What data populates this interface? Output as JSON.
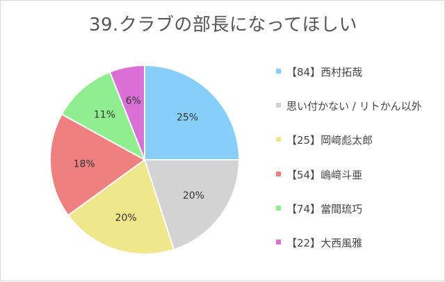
{
  "chart_data": {
    "type": "pie",
    "title": "39.クラブの部長になってほしい",
    "slices": [
      {
        "label": "【84】西村拓哉",
        "value": 25,
        "display": "25%",
        "color": "#87cefa"
      },
      {
        "label": "思い付かない / リトかん以外",
        "value": 20,
        "display": "20%",
        "color": "#d3d3d3"
      },
      {
        "label": "【25】岡﨑彪太郎",
        "value": 20,
        "display": "20%",
        "color": "#f0e68c"
      },
      {
        "label": "【54】嶋﨑斗亜",
        "value": 18,
        "display": "18%",
        "color": "#f08080"
      },
      {
        "label": "【74】當間琉巧",
        "value": 11,
        "display": "11%",
        "color": "#90ee90"
      },
      {
        "label": "【22】大西風雅",
        "value": 6,
        "display": "6%",
        "color": "#da70d6"
      }
    ],
    "legend_position": "right"
  }
}
